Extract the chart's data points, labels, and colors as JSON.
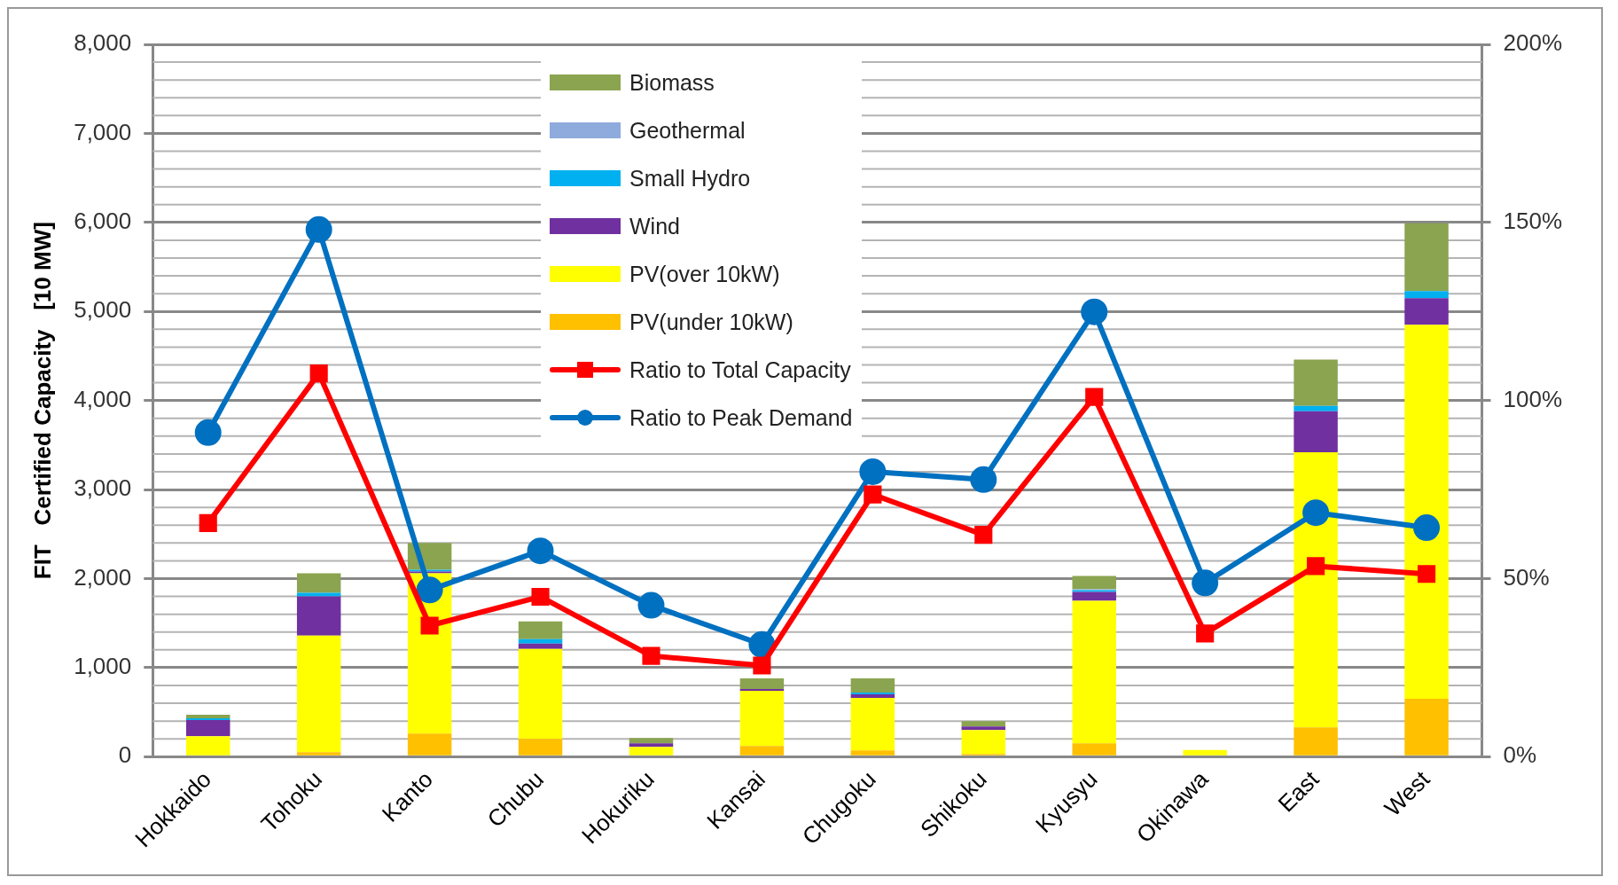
{
  "chart_data": {
    "type": "bar",
    "stacked": true,
    "ylabel": "FIT   Certified Capacity   [10 MW]",
    "categories": [
      "Hokkaido",
      "Tohoku",
      "Kanto",
      "Chubu",
      "Hokuriku",
      "Kansai",
      "Chugoku",
      "Shikoku",
      "Kyusyu",
      "Okinawa",
      "East",
      "West"
    ],
    "series": [
      {
        "name": "PV(under 10kW)",
        "color": "#ffc000",
        "values": [
          null,
          50,
          260,
          200,
          null,
          120,
          70,
          30,
          150,
          15,
          330,
          650
        ]
      },
      {
        "name": "PV(over 10kW)",
        "color": "#ffff00",
        "values": [
          230,
          1310,
          1800,
          1010,
          110,
          620,
          590,
          270,
          1600,
          60,
          3090,
          4200
        ]
      },
      {
        "name": "Wind",
        "color": "#7030a0",
        "values": [
          180,
          440,
          20,
          60,
          40,
          20,
          40,
          40,
          100,
          0,
          460,
          300
        ]
      },
      {
        "name": "Small Hydro",
        "color": "#00b0f0",
        "values": [
          20,
          40,
          20,
          50,
          null,
          null,
          20,
          null,
          20,
          0,
          60,
          80
        ]
      },
      {
        "name": "Geothermal",
        "color": "#8faadc",
        "values": [
          0,
          0,
          0,
          0,
          0,
          0,
          0,
          0,
          10,
          0,
          0,
          0
        ]
      },
      {
        "name": "Biomass",
        "color": "#8aa450",
        "values": [
          40,
          220,
          300,
          200,
          60,
          120,
          160,
          60,
          150,
          null,
          520,
          760
        ]
      },
      {
        "name": "Ratio to Total Capacity",
        "type": "line",
        "axis": "y2",
        "marker": "square",
        "color": "#ff0000",
        "values": [
          65.6,
          107.6,
          36.8,
          44.9,
          28.3,
          25.6,
          73.6,
          62.3,
          101,
          34.6,
          53.5,
          51.3
        ]
      },
      {
        "name": "Ratio to Peak Demand",
        "type": "line",
        "axis": "y2",
        "marker": "circle",
        "color": "#0070c0",
        "values": [
          91,
          148,
          46.8,
          57.8,
          42.5,
          31.5,
          80,
          77.8,
          124.9,
          48.8,
          68.5,
          64.3
        ]
      }
    ],
    "ylim": [
      0,
      8000
    ],
    "yticks": [
      {
        "value": 0,
        "label": "0"
      },
      {
        "value": 1000,
        "label": "1,000"
      },
      {
        "value": 2000,
        "label": "2,000"
      },
      {
        "value": 3000,
        "label": "3,000"
      },
      {
        "value": 4000,
        "label": "4,000"
      },
      {
        "value": 5000,
        "label": "5,000"
      },
      {
        "value": 6000,
        "label": "6,000"
      },
      {
        "value": 7000,
        "label": "7,000"
      },
      {
        "value": 8000,
        "label": "8,000"
      }
    ],
    "y2lim": [
      0,
      200
    ],
    "y2ticks": [
      {
        "value": 0,
        "label": "0%"
      },
      {
        "value": 50,
        "label": "50%"
      },
      {
        "value": 100,
        "label": "100%"
      },
      {
        "value": 150,
        "label": "150%"
      },
      {
        "value": 200,
        "label": "200%"
      }
    ],
    "grid": "y",
    "legend": "top",
    "line_style": "solid"
  }
}
